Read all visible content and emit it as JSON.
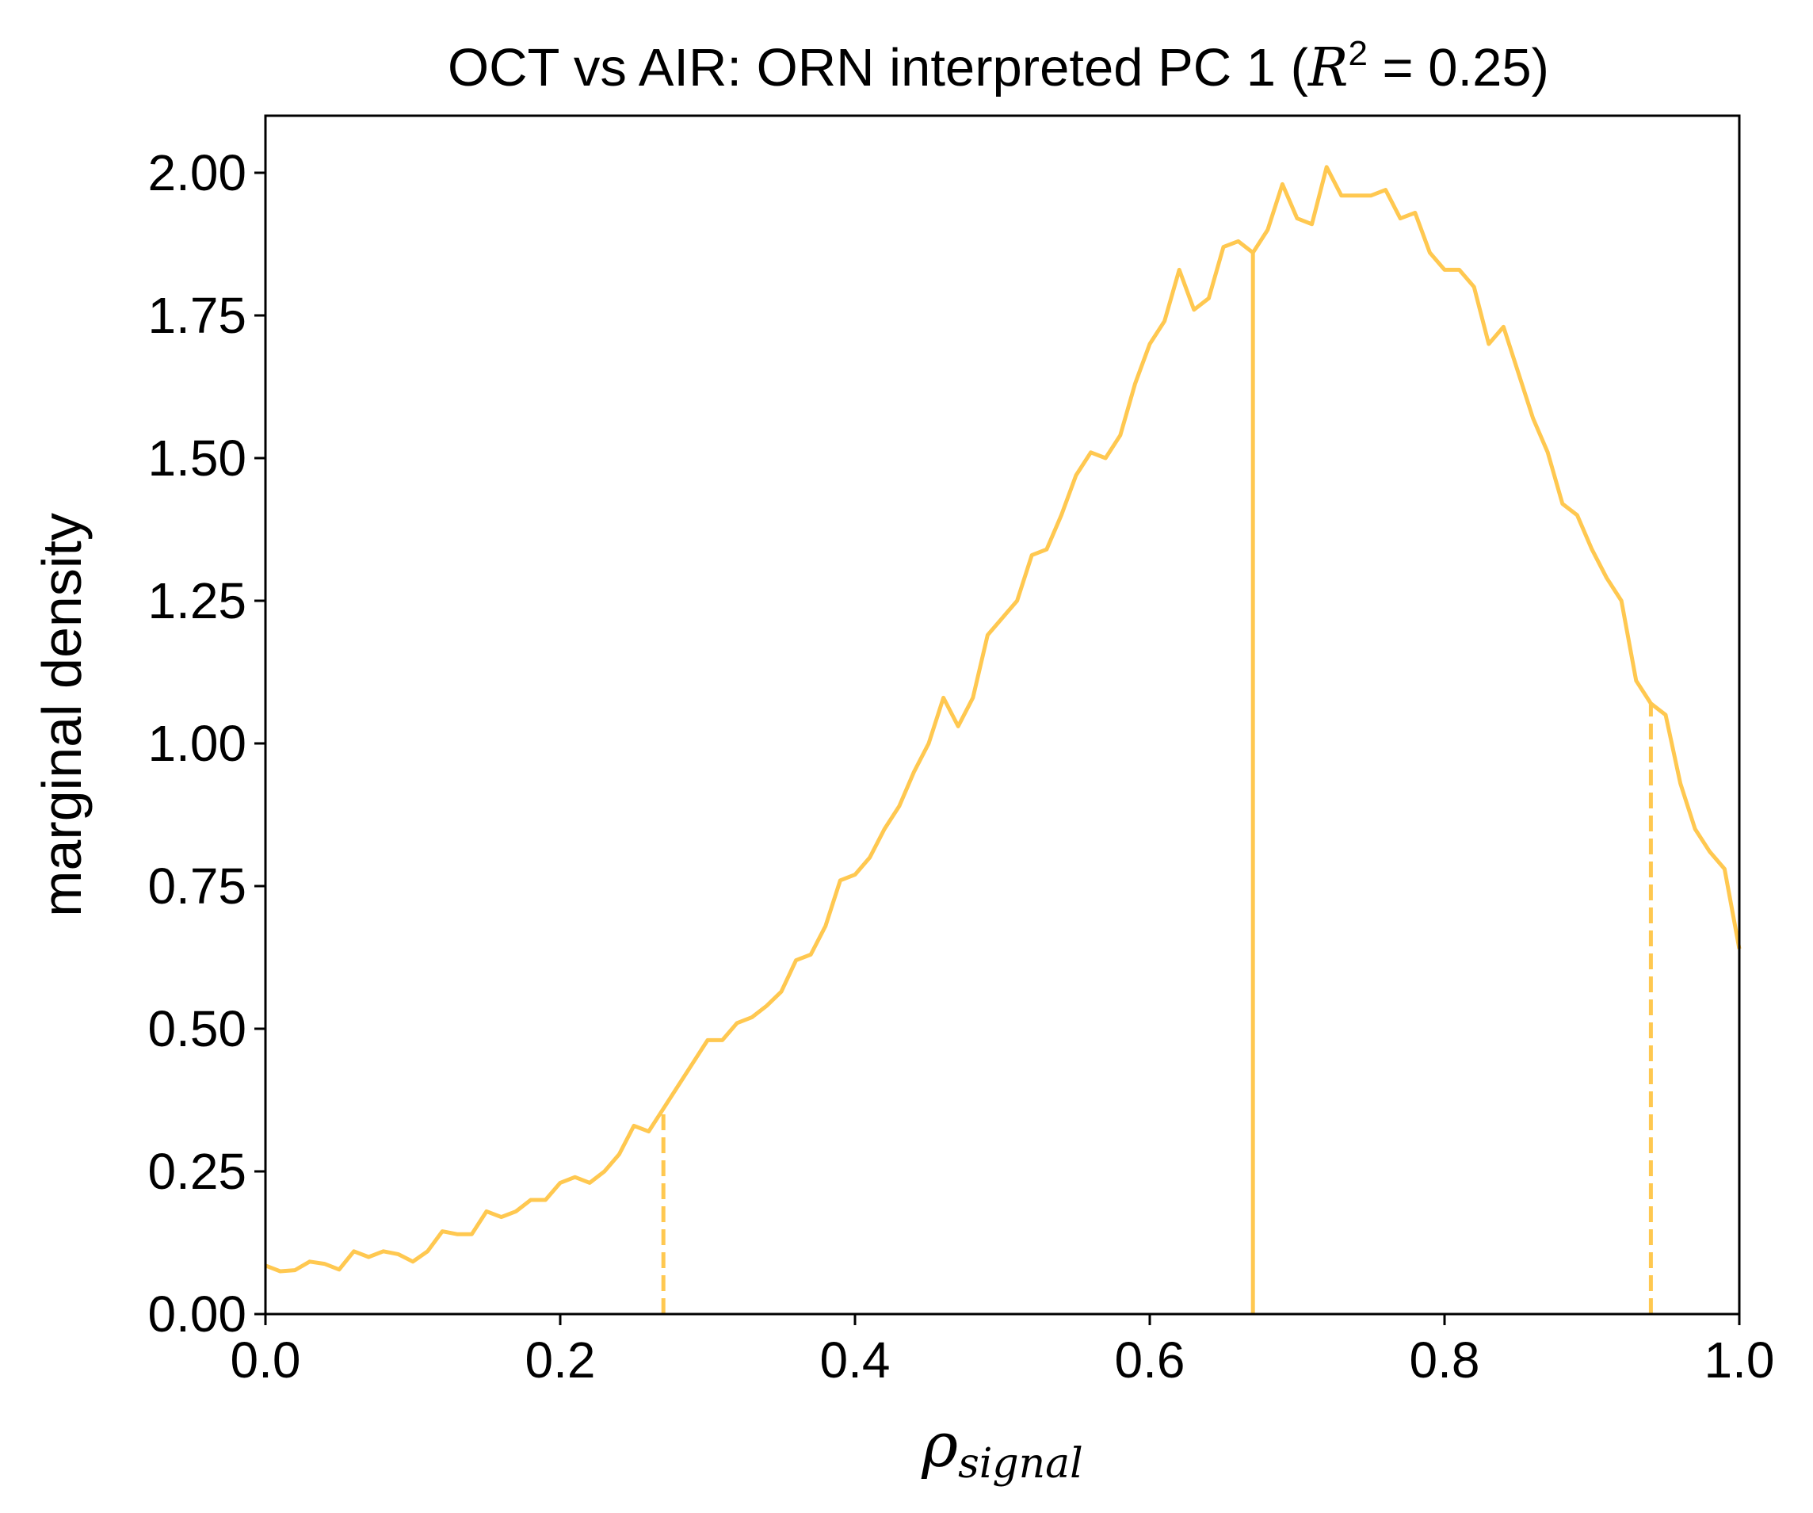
{
  "chart_data": {
    "type": "line",
    "title": {
      "prefix": "OCT vs AIR: ORN interpreted PC 1 (",
      "r_symbol": "R",
      "r_power": "2",
      "suffix": " = 0.25)"
    },
    "xlabel": {
      "symbol": "ρ",
      "subscript": "signal"
    },
    "ylabel": "marginal density",
    "xlim": [
      0.0,
      1.0
    ],
    "ylim": [
      0.0,
      2.1
    ],
    "x_ticks": [
      "0.0",
      "0.2",
      "0.4",
      "0.6",
      "0.8",
      "1.0"
    ],
    "y_ticks": [
      "0.00",
      "0.25",
      "0.50",
      "0.75",
      "1.00",
      "1.25",
      "1.50",
      "1.75",
      "2.00"
    ],
    "grid": false,
    "color": "#ffc850",
    "series": [
      {
        "x": [
          0.0,
          0.01,
          0.02,
          0.03,
          0.04,
          0.05,
          0.06,
          0.07,
          0.08,
          0.09,
          0.1,
          0.11,
          0.12,
          0.13,
          0.14,
          0.15,
          0.16,
          0.17,
          0.18,
          0.19,
          0.2,
          0.21,
          0.22,
          0.23,
          0.24,
          0.25,
          0.26,
          0.27,
          0.28,
          0.29,
          0.3,
          0.31,
          0.32,
          0.33,
          0.34,
          0.35,
          0.36,
          0.37,
          0.38,
          0.39,
          0.4,
          0.41,
          0.42,
          0.43,
          0.44,
          0.45,
          0.46,
          0.47,
          0.48,
          0.49,
          0.5,
          0.51,
          0.52,
          0.53,
          0.54,
          0.55,
          0.56,
          0.57,
          0.58,
          0.59,
          0.6,
          0.61,
          0.62,
          0.63,
          0.64,
          0.65,
          0.66,
          0.67,
          0.68,
          0.69,
          0.7,
          0.71,
          0.72,
          0.73,
          0.74,
          0.75,
          0.76,
          0.77,
          0.78,
          0.79,
          0.8,
          0.81,
          0.82,
          0.83,
          0.84,
          0.85,
          0.86,
          0.87,
          0.88,
          0.89,
          0.9,
          0.91,
          0.92,
          0.93,
          0.94,
          0.95,
          0.96,
          0.97,
          0.98,
          0.99,
          1.0
        ],
        "y": [
          0.085,
          0.075,
          0.077,
          0.092,
          0.088,
          0.078,
          0.11,
          0.1,
          0.11,
          0.105,
          0.092,
          0.11,
          0.145,
          0.14,
          0.14,
          0.18,
          0.17,
          0.18,
          0.2,
          0.2,
          0.23,
          0.24,
          0.23,
          0.25,
          0.28,
          0.33,
          0.32,
          0.36,
          0.4,
          0.44,
          0.48,
          0.48,
          0.51,
          0.52,
          0.54,
          0.565,
          0.62,
          0.63,
          0.68,
          0.76,
          0.77,
          0.8,
          0.85,
          0.89,
          0.95,
          1.0,
          1.08,
          1.03,
          1.08,
          1.19,
          1.22,
          1.25,
          1.33,
          1.34,
          1.4,
          1.47,
          1.51,
          1.5,
          1.54,
          1.63,
          1.7,
          1.74,
          1.83,
          1.76,
          1.78,
          1.87,
          1.88,
          1.86,
          1.9,
          1.98,
          1.92,
          1.91,
          2.01,
          1.96,
          1.96,
          1.96,
          1.97,
          1.92,
          1.93,
          1.86,
          1.83,
          1.83,
          1.8,
          1.7,
          1.73,
          1.65,
          1.57,
          1.51,
          1.42,
          1.4,
          1.34,
          1.29,
          1.25,
          1.11,
          1.07,
          1.05,
          0.93,
          0.85,
          0.81,
          0.78,
          0.64
        ]
      }
    ],
    "vlines": [
      {
        "x": 0.27,
        "ymax": 0.36,
        "style": "dashed"
      },
      {
        "x": 0.67,
        "ymax": 1.86,
        "style": "solid"
      },
      {
        "x": 0.94,
        "ymax": 1.07,
        "style": "dashed"
      }
    ]
  }
}
